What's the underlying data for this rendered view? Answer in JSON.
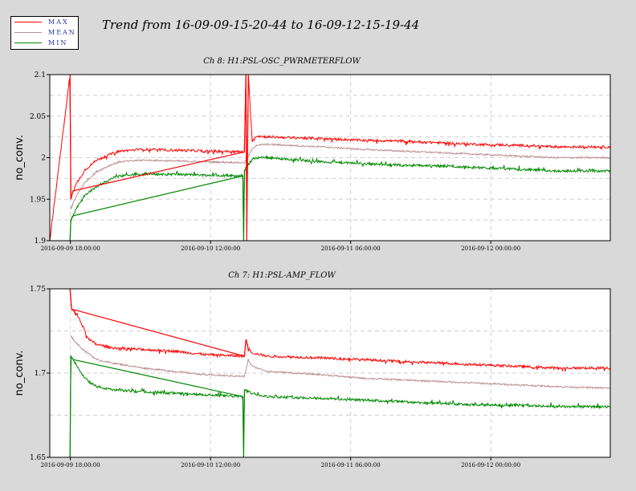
{
  "title": "Trend from 16-09-09-15-20-44 to 16-09-12-15-19-44",
  "legend": [
    {
      "label": "MAX",
      "color": "#ff0000"
    },
    {
      "label": "MEAN",
      "color": "#bc8f8f"
    },
    {
      "label": "MIN",
      "color": "#008800"
    }
  ],
  "chart_data": [
    {
      "type": "line",
      "title": "Ch 8: H1:PSL-OSC_PWRMETERFLOW",
      "ylabel": "no_conv.",
      "ylim": [
        1.9,
        2.1
      ],
      "yticks": [
        "1.9",
        "1.95",
        "2",
        "2.05",
        "2.1"
      ],
      "xticks": [
        "2016-09-09 18:00:00",
        "2016-09-10 12:00:00",
        "2016-09-11 06:00:00",
        "2016-09-12 00:00:00"
      ],
      "xlim_hours": [
        0,
        72
      ],
      "xtick_hours": [
        2.65,
        20.65,
        38.65,
        56.65
      ],
      "grid": true,
      "series": [
        {
          "name": "MAX",
          "color": "#ff0000",
          "x": [
            0,
            2.6,
            2.7,
            3.0,
            3.5,
            4.5,
            6,
            8,
            9,
            12,
            16,
            20,
            25,
            25.2,
            25.3,
            25.5,
            26,
            26.5,
            28,
            35,
            40,
            45,
            50,
            55,
            60,
            65,
            72
          ],
          "y": [
            1.9,
            2.1,
            1.95,
            1.96,
            1.97,
            1.985,
            1.997,
            2.005,
            2.008,
            2.01,
            2.009,
            2.008,
            2.007,
            2.1,
            1.9,
            2.1,
            2.02,
            2.026,
            2.025,
            2.023,
            2.021,
            2.02,
            2.018,
            2.016,
            2.015,
            2.013,
            2.013
          ]
        },
        {
          "name": "MEAN",
          "color": "#bc8f8f",
          "x": [
            2.7,
            3.0,
            3.5,
            4.5,
            6,
            8,
            9,
            12,
            16,
            20,
            25,
            26,
            26.5,
            28,
            35,
            40,
            45,
            50,
            55,
            60,
            65,
            72
          ],
          "y": [
            1.938,
            1.945,
            1.955,
            1.97,
            1.983,
            1.992,
            1.995,
            1.997,
            1.996,
            1.995,
            1.994,
            2.01,
            2.015,
            2.016,
            2.013,
            2.01,
            2.008,
            2.006,
            2.004,
            2.002,
            2.0,
            2.0
          ]
        },
        {
          "name": "MIN",
          "color": "#008800",
          "x": [
            2.6,
            2.7,
            3.0,
            3.5,
            4.5,
            6,
            8,
            9,
            12,
            16,
            20,
            24.8,
            24.9,
            25.0,
            26,
            26.5,
            28,
            35,
            40,
            45,
            50,
            55,
            60,
            65,
            72
          ],
          "y": [
            1.9,
            1.925,
            1.93,
            1.94,
            1.955,
            1.965,
            1.975,
            1.978,
            1.98,
            1.98,
            1.979,
            1.978,
            1.9,
            1.985,
            1.998,
            2.0,
            2.0,
            1.995,
            1.993,
            1.991,
            1.99,
            1.988,
            1.986,
            1.984,
            1.984
          ]
        }
      ]
    },
    {
      "type": "line",
      "title": "Ch 7: H1:PSL-AMP_FLOW",
      "ylabel": "no_conv.",
      "ylim": [
        1.65,
        1.75
      ],
      "yticks": [
        "1.65",
        "1.7",
        "1.75"
      ],
      "xticks": [
        "2016-09-09 18:00:00",
        "2016-09-10 12:00:00",
        "2016-09-11 06:00:00",
        "2016-09-12 00:00:00"
      ],
      "xlim_hours": [
        0,
        72
      ],
      "xtick_hours": [
        2.65,
        20.65,
        38.65,
        56.65
      ],
      "grid": true,
      "series": [
        {
          "name": "MAX",
          "color": "#ff0000",
          "x": [
            2.6,
            2.8,
            3.5,
            4.5,
            5,
            6,
            8,
            12,
            16,
            20,
            25,
            25.2,
            25.5,
            26,
            28,
            35,
            40,
            45,
            50,
            55,
            60,
            65,
            72
          ],
          "y": [
            1.75,
            1.738,
            1.735,
            1.725,
            1.72,
            1.717,
            1.715,
            1.714,
            1.713,
            1.711,
            1.71,
            1.72,
            1.715,
            1.712,
            1.71,
            1.709,
            1.708,
            1.707,
            1.706,
            1.705,
            1.704,
            1.703,
            1.703
          ]
        },
        {
          "name": "MEAN",
          "color": "#bc8f8f",
          "x": [
            2.7,
            3.0,
            4,
            6,
            8,
            12,
            16,
            20,
            25,
            25.5,
            26,
            28,
            35,
            40,
            45,
            50,
            55,
            60,
            65,
            72
          ],
          "y": [
            1.722,
            1.72,
            1.715,
            1.708,
            1.706,
            1.703,
            1.701,
            1.699,
            1.698,
            1.708,
            1.704,
            1.701,
            1.699,
            1.697,
            1.696,
            1.695,
            1.694,
            1.693,
            1.692,
            1.691
          ]
        },
        {
          "name": "MIN",
          "color": "#008800",
          "x": [
            2.6,
            2.7,
            3.0,
            4,
            5,
            6,
            8,
            12,
            16,
            20,
            24.8,
            24.9,
            25.0,
            26,
            28,
            35,
            40,
            45,
            50,
            55,
            60,
            65,
            72
          ],
          "y": [
            1.65,
            1.71,
            1.708,
            1.7,
            1.695,
            1.692,
            1.69,
            1.689,
            1.688,
            1.687,
            1.686,
            1.65,
            1.69,
            1.688,
            1.686,
            1.685,
            1.684,
            1.683,
            1.682,
            1.681,
            1.681,
            1.68,
            1.68
          ]
        }
      ]
    }
  ]
}
